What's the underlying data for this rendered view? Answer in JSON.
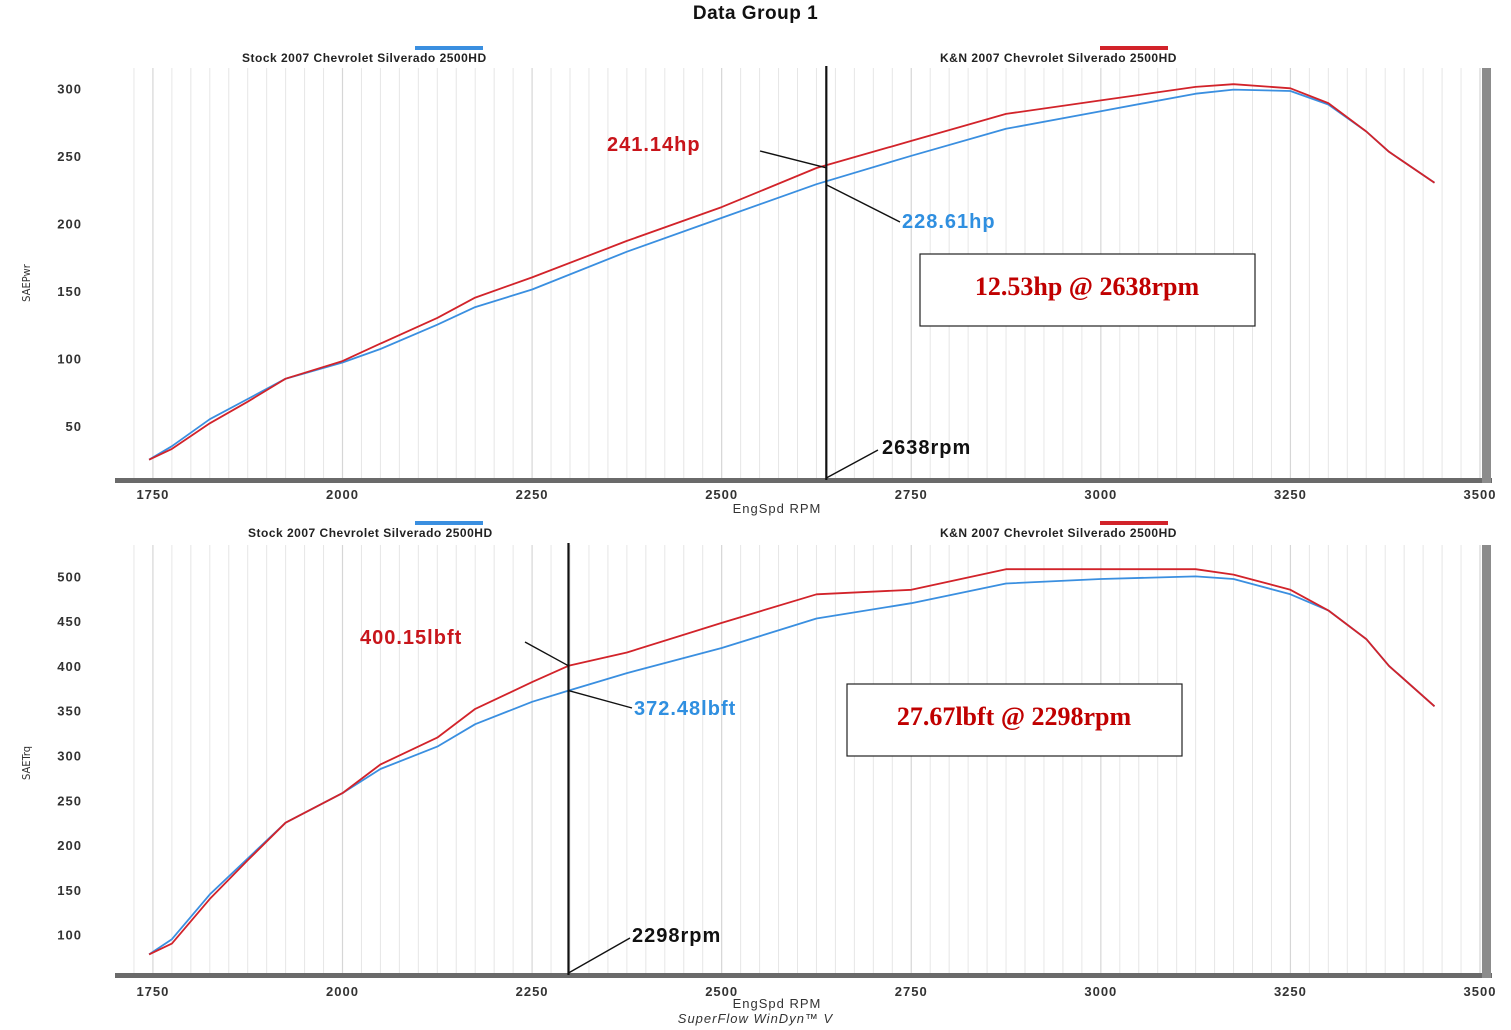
{
  "title": "Data Group 1",
  "footer": "SuperFlow WinDyn™ V",
  "colors": {
    "stock": "#3a8fe0",
    "kn": "#d2232a",
    "grid": "#d6d6d6",
    "axis": "#6a6a6a",
    "annotation_red": "#c8151b",
    "annotation_blue": "#2f8fe0",
    "marker": "#111111"
  },
  "chart_data": [
    {
      "type": "line",
      "xlabel": "EngSpd RPM",
      "ylabel": "SAEPwr",
      "xlim": [
        1700,
        3500
      ],
      "ylim": [
        10,
        315
      ],
      "x_ticks": [
        1750,
        2000,
        2250,
        2500,
        2750,
        3000,
        3250,
        3500
      ],
      "y_ticks": [
        50,
        100,
        150,
        200,
        250,
        300
      ],
      "legend": [
        "Stock 2007 Chevrolet Silverado 2500HD",
        "K&N 2007 Chevrolet Silverado 2500HD"
      ],
      "grid": true,
      "series": [
        {
          "name": "Stock 2007 Chevrolet Silverado 2500HD",
          "color": "stock",
          "x": [
            1745,
            1775,
            1825,
            1875,
            1925,
            2000,
            2050,
            2125,
            2175,
            2250,
            2375,
            2500,
            2625,
            2750,
            2875,
            3000,
            3125,
            3175,
            3250,
            3300,
            3350,
            3380,
            3440
          ],
          "y": [
            25,
            35,
            55,
            70,
            85,
            97,
            107,
            125,
            138,
            151,
            179,
            204,
            229,
            250,
            270,
            283,
            296,
            299,
            298,
            288,
            268,
            253,
            230
          ]
        },
        {
          "name": "K&N 2007 Chevrolet Silverado 2500HD",
          "color": "kn",
          "x": [
            1745,
            1775,
            1825,
            1875,
            1925,
            2000,
            2050,
            2125,
            2175,
            2250,
            2375,
            2500,
            2625,
            2750,
            2875,
            3000,
            3125,
            3175,
            3250,
            3300,
            3350,
            3380,
            3440
          ],
          "y": [
            25,
            33,
            52,
            68,
            85,
            98,
            111,
            130,
            145,
            160,
            187,
            212,
            241,
            261,
            281,
            291,
            301,
            303,
            300,
            289,
            268,
            253,
            230
          ]
        }
      ],
      "annotations": {
        "rpm": 2638,
        "rpm_label": "2638rpm",
        "kn_value": 241.14,
        "kn_label": "241.14hp",
        "stock_value": 228.61,
        "stock_label": "228.61hp",
        "difference": "12.53hp @ 2638rpm"
      }
    },
    {
      "type": "line",
      "xlabel": "EngSpd RPM",
      "ylabel": "SAETrq",
      "xlim": [
        1700,
        3500
      ],
      "ylim": [
        55,
        535
      ],
      "x_ticks": [
        1750,
        2000,
        2250,
        2500,
        2750,
        3000,
        3250,
        3500
      ],
      "y_ticks": [
        100,
        150,
        200,
        250,
        300,
        350,
        400,
        450,
        500
      ],
      "legend": [
        "Stock 2007 Chevrolet Silverado 2500HD",
        "K&N 2007 Chevrolet Silverado 2500HD"
      ],
      "grid": true,
      "series": [
        {
          "name": "Stock 2007 Chevrolet Silverado 2500HD",
          "color": "stock",
          "x": [
            1745,
            1775,
            1825,
            1875,
            1925,
            2000,
            2050,
            2125,
            2175,
            2250,
            2298,
            2375,
            2500,
            2625,
            2750,
            2875,
            3000,
            3125,
            3175,
            3250,
            3300,
            3350,
            3380,
            3440
          ],
          "y": [
            78,
            95,
            145,
            185,
            225,
            258,
            285,
            310,
            335,
            360,
            372.48,
            392,
            420,
            453,
            470,
            492,
            497,
            500,
            497,
            480,
            462,
            430,
            400,
            355
          ]
        },
        {
          "name": "K&N 2007 Chevrolet Silverado 2500HD",
          "color": "kn",
          "x": [
            1745,
            1775,
            1825,
            1875,
            1925,
            2000,
            2050,
            2125,
            2175,
            2250,
            2298,
            2375,
            2500,
            2625,
            2750,
            2875,
            3000,
            3125,
            3175,
            3250,
            3300,
            3350,
            3380,
            3440
          ],
          "y": [
            78,
            90,
            140,
            183,
            225,
            258,
            290,
            320,
            352,
            382,
            400.15,
            415,
            448,
            480,
            485,
            508,
            508,
            508,
            502,
            485,
            462,
            430,
            400,
            355
          ]
        }
      ],
      "annotations": {
        "rpm": 2298,
        "rpm_label": "2298rpm",
        "kn_value": 400.15,
        "kn_label": "400.15lbft",
        "stock_value": 372.48,
        "stock_label": "372.48lbft",
        "difference": "27.67lbft @ 2298rpm"
      }
    }
  ]
}
